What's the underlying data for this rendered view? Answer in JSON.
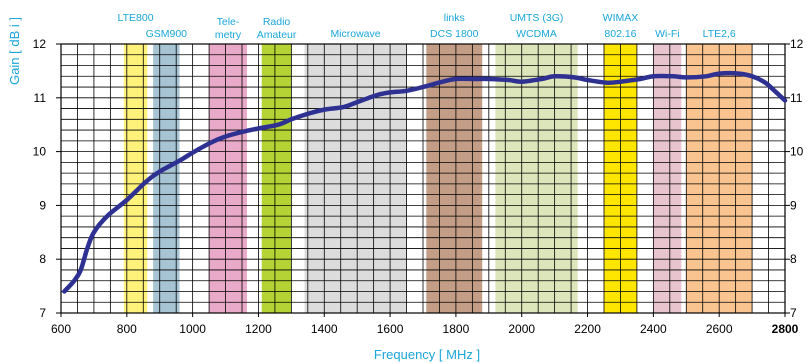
{
  "chart_data": {
    "type": "line",
    "title": "",
    "xlabel": "Frequency [ MHz ]",
    "ylabel": "Gain [ dB i ]",
    "xlim": [
      600,
      2800
    ],
    "ylim": [
      7,
      12
    ],
    "x_ticks": [
      "600",
      "800",
      "1000",
      "1200",
      "1400",
      "1600",
      "1800",
      "2000",
      "2200",
      "2400",
      "2600",
      "2800"
    ],
    "y_ticks": [
      "7",
      "8",
      "9",
      "10",
      "11",
      "12"
    ],
    "grid": true,
    "colors": {
      "line": "#2e3192",
      "labels": "#1aa6d8"
    },
    "bands": [
      {
        "name": "LTE800 / GSM900 (LTE800)",
        "lines": [
          "LTE800"
        ],
        "start": 791,
        "end": 862,
        "color": "#fff27a"
      },
      {
        "name": "GSM900",
        "lines": [
          "GSM900"
        ],
        "start": 880,
        "end": 960,
        "color": "#a7c4d4"
      },
      {
        "name": "Telemetry",
        "lines": [
          "Tele-",
          "metry"
        ],
        "start": 1050,
        "end": 1165,
        "color": "#e9a9c8"
      },
      {
        "name": "Radio Amateur",
        "lines": [
          "Radio",
          "Amateur"
        ],
        "start": 1210,
        "end": 1300,
        "color": "#b5d334"
      },
      {
        "name": "Microwave",
        "lines": [
          "Microwave"
        ],
        "start": 1340,
        "end": 1650,
        "color": "#dcdcdc"
      },
      {
        "name": "links DCS 1800",
        "lines": [
          "links",
          "DCS 1800"
        ],
        "start": 1710,
        "end": 1880,
        "color": "#c39d86"
      },
      {
        "name": "UMTS (3G) WCDMA",
        "lines": [
          "UMTS (3G)",
          "WCDMA"
        ],
        "start": 1920,
        "end": 2170,
        "color": "#dde6bb"
      },
      {
        "name": "WIMAX 802.16",
        "lines": [
          "WIMAX",
          "802.16"
        ],
        "start": 2250,
        "end": 2350,
        "color": "#ffe600"
      },
      {
        "name": "Wi-Fi",
        "lines": [
          "Wi-Fi"
        ],
        "start": 2400,
        "end": 2485,
        "color": "#e8c4cf"
      },
      {
        "name": "LTE2,6",
        "lines": [
          "LTE2,6"
        ],
        "start": 2500,
        "end": 2700,
        "color": "#f9c48f"
      }
    ],
    "series": [
      {
        "x": [
          610,
          640,
          660,
          680,
          700,
          740,
          800,
          860,
          900,
          960,
          1000,
          1060,
          1100,
          1160,
          1200,
          1260,
          1300,
          1360,
          1400,
          1460,
          1500,
          1560,
          1600,
          1650,
          1700,
          1760,
          1800,
          1860,
          1900,
          1960,
          2000,
          2060,
          2100,
          2160,
          2200,
          2260,
          2300,
          2360,
          2400,
          2460,
          2500,
          2560,
          2600,
          2660,
          2700,
          2740,
          2770,
          2800
        ],
        "y": [
          7.4,
          7.6,
          7.8,
          8.2,
          8.5,
          8.8,
          9.1,
          9.45,
          9.63,
          9.83,
          9.98,
          10.18,
          10.28,
          10.38,
          10.43,
          10.5,
          10.6,
          10.72,
          10.78,
          10.83,
          10.92,
          11.05,
          11.1,
          11.13,
          11.2,
          11.3,
          11.35,
          11.35,
          11.35,
          11.33,
          11.3,
          11.35,
          11.4,
          11.38,
          11.33,
          11.28,
          11.3,
          11.35,
          11.4,
          11.4,
          11.38,
          11.4,
          11.45,
          11.45,
          11.4,
          11.28,
          11.12,
          10.95
        ]
      }
    ]
  }
}
